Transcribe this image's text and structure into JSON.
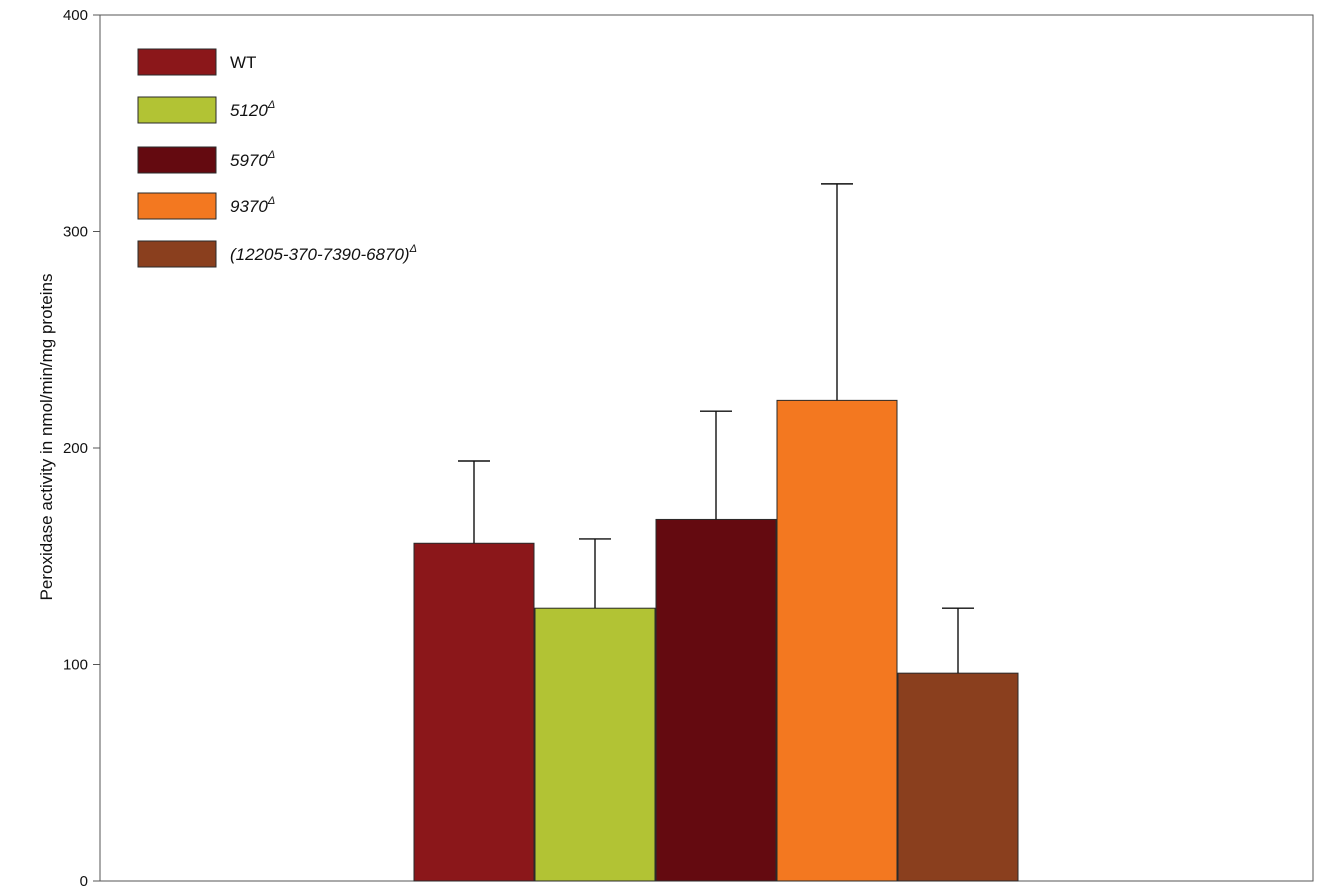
{
  "chart_data": {
    "type": "bar",
    "title": "",
    "xlabel": "",
    "ylabel": "Peroxidase activity in nmol/min/mg proteins",
    "ylim": [
      0,
      400
    ],
    "yticks": [
      0,
      100,
      200,
      300,
      400
    ],
    "grid": false,
    "legend_position": "top-left",
    "series": [
      {
        "name": "WT",
        "sup": "",
        "italic": false,
        "value": 156,
        "error": 38,
        "color": "#8B171A"
      },
      {
        "name": "5120",
        "sup": "Δ",
        "italic": true,
        "value": 126,
        "error": 32,
        "color": "#B2C334"
      },
      {
        "name": "5970",
        "sup": "Δ",
        "italic": true,
        "value": 167,
        "error": 50,
        "color": "#640A10"
      },
      {
        "name": "9370",
        "sup": "Δ",
        "italic": true,
        "value": 222,
        "error": 100,
        "color": "#F37820"
      },
      {
        "name": "(12205-370-7390-6870)",
        "sup": "Δ",
        "italic": true,
        "value": 96,
        "error": 30,
        "color": "#8A3F1E"
      }
    ]
  }
}
